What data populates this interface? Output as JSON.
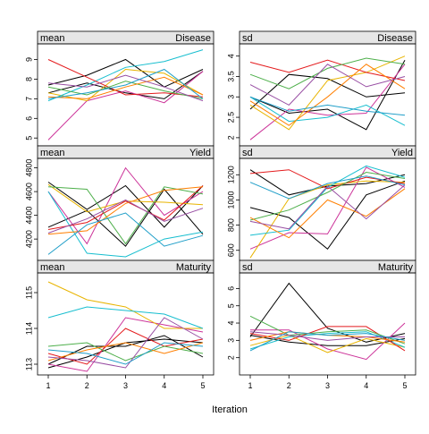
{
  "chart_data": {
    "type": "line",
    "xlabel": "Iteration",
    "x": [
      1,
      2,
      3,
      4,
      5
    ],
    "series_colors": [
      "#000000",
      "#000000",
      "#cc3399",
      "#e8b400",
      "#17becf",
      "#e41a1c",
      "#4daf4a",
      "#ff7f00",
      "#984ea3",
      "#1f9ec8"
    ],
    "panels": [
      {
        "stat": "mean",
        "variable": "Disease",
        "ylim": [
          4.6,
          9.8
        ],
        "yticks": [
          5,
          6,
          7,
          8,
          9
        ],
        "series": [
          {
            "values": [
              7.7,
              8.2,
              9.0,
              7.6,
              8.5
            ]
          },
          {
            "values": [
              7.3,
              7.8,
              7.3,
              7.0,
              8.4
            ]
          },
          {
            "values": [
              4.9,
              6.9,
              7.4,
              6.8,
              8.4
            ]
          },
          {
            "values": [
              7.3,
              6.9,
              8.5,
              8.3,
              7.2
            ]
          },
          {
            "values": [
              6.9,
              7.7,
              8.6,
              8.9,
              9.5
            ]
          },
          {
            "values": [
              9.0,
              8.1,
              7.2,
              7.3,
              7.1
            ]
          },
          {
            "values": [
              7.6,
              7.2,
              7.9,
              7.4,
              7.0
            ]
          },
          {
            "values": [
              7.1,
              7.0,
              7.6,
              8.1,
              7.2
            ]
          },
          {
            "values": [
              7.8,
              7.6,
              8.2,
              7.6,
              6.9
            ]
          },
          {
            "values": [
              7.0,
              7.3,
              7.7,
              8.5,
              7.0
            ]
          }
        ]
      },
      {
        "stat": "sd",
        "variable": "Disease",
        "ylim": [
          1.8,
          4.3
        ],
        "yticks": [
          2.0,
          2.5,
          3.0,
          3.5,
          4.0
        ],
        "series": [
          {
            "values": [
              3.0,
              2.6,
              2.7,
              2.2,
              3.9
            ]
          },
          {
            "values": [
              2.7,
              3.55,
              3.45,
              3.0,
              3.1
            ]
          },
          {
            "values": [
              1.95,
              2.7,
              2.55,
              2.6,
              3.8
            ]
          },
          {
            "values": [
              2.8,
              2.2,
              3.4,
              3.6,
              4.0
            ]
          },
          {
            "values": [
              3.0,
              2.4,
              2.5,
              2.8,
              2.3
            ]
          },
          {
            "values": [
              3.85,
              3.6,
              3.9,
              3.6,
              3.4
            ]
          },
          {
            "values": [
              3.55,
              3.2,
              3.7,
              3.95,
              3.8
            ]
          },
          {
            "values": [
              2.9,
              2.3,
              3.0,
              3.8,
              3.2
            ]
          },
          {
            "values": [
              3.3,
              2.8,
              3.8,
              3.25,
              3.5
            ]
          },
          {
            "values": [
              3.0,
              2.65,
              2.8,
              2.65,
              2.55
            ]
          }
        ]
      },
      {
        "stat": "mean",
        "variable": "Yield",
        "ylim": [
          4020,
          4880
        ],
        "yticks": [
          4200,
          4400,
          4600,
          4800
        ],
        "series": [
          {
            "values": [
              4680,
              4450,
              4650,
              4300,
              4650
            ]
          },
          {
            "values": [
              4300,
              4440,
              4140,
              4620,
              4240
            ]
          },
          {
            "values": [
              4600,
              4160,
              4800,
              4400,
              4600
            ]
          },
          {
            "values": [
              4660,
              4430,
              4520,
              4510,
              4490
            ]
          },
          {
            "values": [
              4600,
              4080,
              4050,
              4200,
              4260
            ]
          },
          {
            "values": [
              4280,
              4340,
              4520,
              4360,
              4650
            ]
          },
          {
            "values": [
              4640,
              4620,
              4160,
              4640,
              4580
            ]
          },
          {
            "values": [
              4240,
              4270,
              4500,
              4610,
              4640
            ]
          },
          {
            "values": [
              4250,
              4370,
              4530,
              4350,
              4460
            ]
          },
          {
            "values": [
              4070,
              4320,
              4420,
              4140,
              4230
            ]
          }
        ]
      },
      {
        "stat": "sd",
        "variable": "Yield",
        "ylim": [
          520,
          1330
        ],
        "yticks": [
          600,
          800,
          1000,
          1200
        ],
        "series": [
          {
            "values": [
              1240,
              1040,
              1110,
              1130,
              1200
            ]
          },
          {
            "values": [
              940,
              860,
              610,
              1040,
              1150
            ]
          },
          {
            "values": [
              610,
              740,
              730,
              1260,
              1100
            ]
          },
          {
            "values": [
              540,
              1010,
              1120,
              1150,
              1140
            ]
          },
          {
            "values": [
              720,
              760,
              1100,
              1270,
              1180
            ]
          },
          {
            "values": [
              1210,
              1240,
              1090,
              1180,
              1130
            ]
          },
          {
            "values": [
              840,
              920,
              1060,
              1220,
              1170
            ]
          },
          {
            "values": [
              860,
              700,
              1000,
              870,
              1090
            ]
          },
          {
            "values": [
              830,
              770,
              1110,
              850,
              1120
            ]
          },
          {
            "values": [
              1140,
              1010,
              1130,
              1190,
              1120
            ]
          }
        ]
      },
      {
        "stat": "mean",
        "variable": "Maturity",
        "ylim": [
          112.7,
          115.55
        ],
        "yticks": [
          113,
          114,
          115
        ],
        "series": [
          {
            "values": [
              113.0,
              113.5,
              113.5,
              113.8,
              113.2
            ]
          },
          {
            "values": [
              112.9,
              113.2,
              113.6,
              113.7,
              113.6
            ]
          },
          {
            "values": [
              113.0,
              112.8,
              114.3,
              114.1,
              113.9
            ]
          },
          {
            "values": [
              115.3,
              114.8,
              114.6,
              114.0,
              114.0
            ]
          },
          {
            "values": [
              114.3,
              114.6,
              114.5,
              114.4,
              114.0
            ]
          },
          {
            "values": [
              113.3,
              113.0,
              114.0,
              113.5,
              113.7
            ]
          },
          {
            "values": [
              113.5,
              113.6,
              113.1,
              113.5,
              113.3
            ]
          },
          {
            "values": [
              113.1,
              113.4,
              113.6,
              113.3,
              113.6
            ]
          },
          {
            "values": [
              113.2,
              113.1,
              112.9,
              114.3,
              113.7
            ]
          },
          {
            "values": [
              113.4,
              113.3,
              113.0,
              113.6,
              113.5
            ]
          }
        ]
      },
      {
        "stat": "sd",
        "variable": "Maturity",
        "ylim": [
          1.0,
          6.9
        ],
        "yticks": [
          2,
          3,
          4,
          5,
          6
        ],
        "series": [
          {
            "values": [
              3.2,
              6.3,
              3.7,
              2.9,
              3.4
            ]
          },
          {
            "values": [
              3.3,
              2.9,
              2.7,
              2.7,
              3.1
            ]
          },
          {
            "values": [
              3.6,
              3.6,
              2.5,
              1.9,
              4.0
            ]
          },
          {
            "values": [
              2.7,
              3.3,
              2.3,
              3.1,
              2.6
            ]
          },
          {
            "values": [
              2.5,
              3.2,
              3.4,
              3.5,
              2.6
            ]
          },
          {
            "values": [
              3.4,
              3.0,
              3.8,
              3.8,
              2.4
            ]
          },
          {
            "values": [
              4.4,
              3.3,
              3.5,
              3.6,
              2.8
            ]
          },
          {
            "values": [
              3.0,
              3.5,
              3.3,
              3.2,
              2.9
            ]
          },
          {
            "values": [
              3.5,
              3.3,
              3.0,
              3.2,
              3.2
            ]
          },
          {
            "values": [
              2.4,
              3.5,
              3.3,
              3.4,
              3.0
            ]
          }
        ]
      }
    ]
  }
}
